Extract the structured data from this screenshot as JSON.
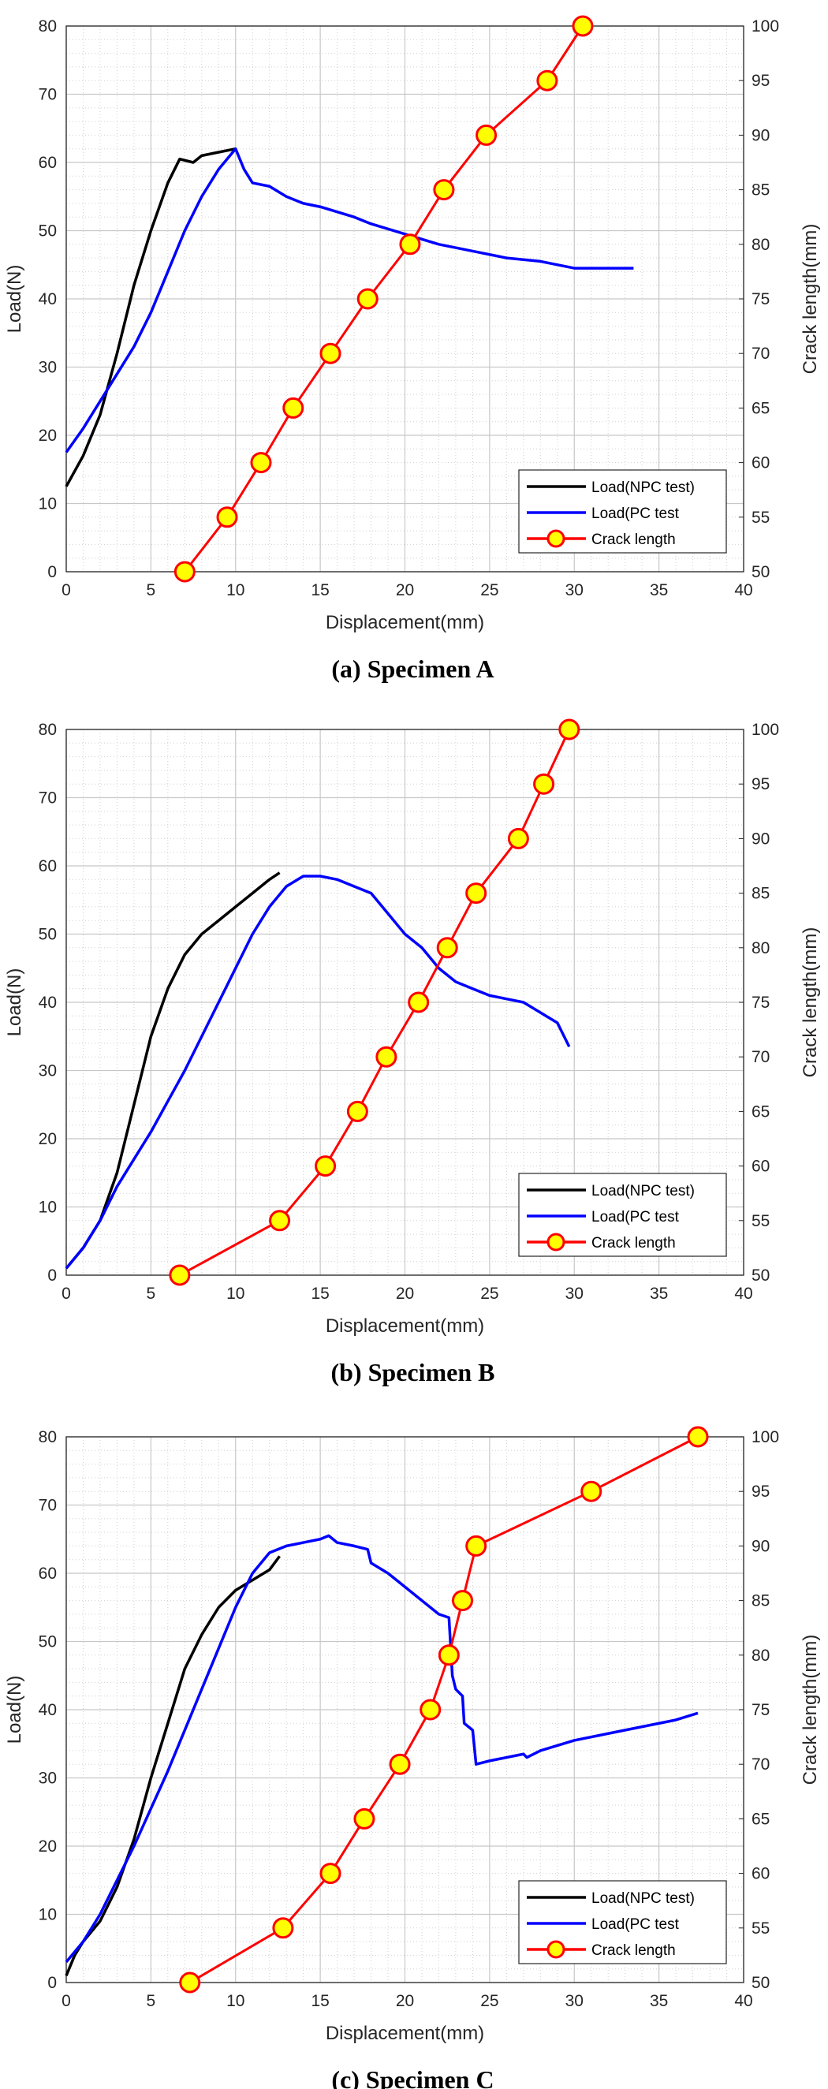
{
  "chart_data": [
    {
      "type": "line",
      "caption": "(a) Specimen A",
      "xlabel": "Displacement(mm)",
      "ylabel": "Load(N)",
      "y2label": "Crack length(mm)",
      "xlim": [
        0,
        40
      ],
      "ylim": [
        0,
        80
      ],
      "y2lim": [
        50,
        100
      ],
      "xticks": [
        0,
        5,
        10,
        15,
        20,
        25,
        30,
        35,
        40
      ],
      "yticks": [
        0,
        10,
        20,
        30,
        40,
        50,
        60,
        70,
        80
      ],
      "y2ticks": [
        50,
        55,
        60,
        65,
        70,
        75,
        80,
        85,
        90,
        95,
        100
      ],
      "grid": true,
      "minor_grid": true,
      "legend": "bottom-right",
      "series": [
        {
          "name": "Load(NPC test)",
          "axis": "left",
          "color": "#000000",
          "x": [
            0,
            1,
            2,
            3,
            4,
            5,
            6,
            6.7,
            7.5,
            8,
            9,
            10
          ],
          "y": [
            12.5,
            17,
            23,
            32,
            42,
            50,
            57,
            60.5,
            60,
            61,
            61.5,
            62
          ]
        },
        {
          "name": "Load(PC test",
          "axis": "left",
          "color": "#0000ff",
          "x": [
            0,
            1,
            2,
            3,
            4,
            5,
            6,
            7,
            8,
            9,
            10,
            10.5,
            11,
            12,
            13,
            14,
            15,
            17,
            18,
            20,
            22,
            24,
            26,
            28,
            30,
            32,
            33.5
          ],
          "y": [
            17.5,
            21,
            25,
            29,
            33,
            38,
            44,
            50,
            55,
            59,
            62,
            59,
            57,
            56.5,
            55,
            54,
            53.5,
            52,
            51,
            49.5,
            48,
            47,
            46,
            45.5,
            44.5,
            44.5,
            44.5
          ]
        },
        {
          "name": "Crack length",
          "axis": "right",
          "color": "#ff0000",
          "marker_fill": "#ffff00",
          "x": [
            7,
            9.5,
            11.5,
            13.4,
            15.6,
            17.8,
            20.3,
            22.3,
            24.8,
            28.4,
            30.5
          ],
          "y": [
            50,
            55,
            60,
            65,
            70,
            75,
            80,
            85,
            90,
            95,
            100
          ]
        }
      ]
    },
    {
      "type": "line",
      "caption": "(b) Specimen B",
      "xlabel": "Displacement(mm)",
      "ylabel": "Load(N)",
      "y2label": "Crack length(mm)",
      "xlim": [
        0,
        40
      ],
      "ylim": [
        0,
        80
      ],
      "y2lim": [
        50,
        100
      ],
      "xticks": [
        0,
        5,
        10,
        15,
        20,
        25,
        30,
        35,
        40
      ],
      "yticks": [
        0,
        10,
        20,
        30,
        40,
        50,
        60,
        70,
        80
      ],
      "y2ticks": [
        50,
        55,
        60,
        65,
        70,
        75,
        80,
        85,
        90,
        95,
        100
      ],
      "grid": true,
      "minor_grid": true,
      "legend": "bottom-right",
      "series": [
        {
          "name": "Load(NPC test)",
          "axis": "left",
          "color": "#000000",
          "x": [
            0,
            1,
            2,
            3,
            4,
            5,
            6,
            7,
            8,
            9,
            10,
            11,
            12,
            12.6
          ],
          "y": [
            1,
            4,
            8,
            15,
            25,
            35,
            42,
            47,
            50,
            52,
            54,
            56,
            58,
            59
          ]
        },
        {
          "name": "Load(PC test",
          "axis": "left",
          "color": "#0000ff",
          "x": [
            0,
            1,
            2,
            3,
            4,
            5,
            6,
            7,
            8,
            9,
            10,
            11,
            12,
            13,
            14,
            15,
            16,
            17,
            18,
            19,
            20,
            21,
            22,
            23,
            24,
            25,
            26,
            27,
            28,
            29,
            29.7
          ],
          "y": [
            1,
            4,
            8,
            13,
            17,
            21,
            25.5,
            30,
            35,
            40,
            45,
            50,
            54,
            57,
            58.5,
            58.5,
            58,
            57,
            56,
            53,
            50,
            48,
            45,
            43,
            42,
            41,
            40.5,
            40,
            38.5,
            37,
            33.5
          ]
        },
        {
          "name": "Crack length",
          "axis": "right",
          "color": "#ff0000",
          "marker_fill": "#ffff00",
          "x": [
            6.7,
            12.6,
            15.3,
            17.2,
            18.9,
            20.8,
            22.5,
            24.2,
            26.7,
            28.2,
            29.7
          ],
          "y": [
            50,
            55,
            60,
            65,
            70,
            75,
            80,
            85,
            90,
            95,
            100
          ]
        }
      ]
    },
    {
      "type": "line",
      "caption": "(c) Specimen C",
      "xlabel": "Displacement(mm)",
      "ylabel": "Load(N)",
      "y2label": "Crack length(mm)",
      "xlim": [
        0,
        40
      ],
      "ylim": [
        0,
        80
      ],
      "y2lim": [
        50,
        100
      ],
      "xticks": [
        0,
        5,
        10,
        15,
        20,
        25,
        30,
        35,
        40
      ],
      "yticks": [
        0,
        10,
        20,
        30,
        40,
        50,
        60,
        70,
        80
      ],
      "y2ticks": [
        50,
        55,
        60,
        65,
        70,
        75,
        80,
        85,
        90,
        95,
        100
      ],
      "grid": true,
      "minor_grid": true,
      "legend": "bottom-right",
      "series": [
        {
          "name": "Load(NPC test)",
          "axis": "left",
          "color": "#000000",
          "x": [
            0,
            0.5,
            1,
            2,
            3,
            4,
            5,
            6,
            7,
            8,
            9,
            10,
            11,
            12,
            12.6
          ],
          "y": [
            1,
            4,
            6,
            9,
            14,
            21,
            30,
            38,
            46,
            51,
            55,
            57.5,
            59,
            60.5,
            62.5
          ]
        },
        {
          "name": "Load(PC test",
          "axis": "left",
          "color": "#0000ff",
          "x": [
            0,
            1,
            2,
            3,
            4,
            5,
            6,
            7,
            8,
            9,
            10,
            11,
            12,
            13,
            14,
            15,
            15.5,
            16,
            17,
            17.8,
            18,
            19,
            20,
            21,
            22,
            22.6,
            22.8,
            23,
            23.4,
            23.5,
            24,
            24.2,
            25,
            26,
            27,
            27.2,
            28,
            30,
            32,
            34,
            36,
            37.3
          ],
          "y": [
            3,
            6,
            10,
            15,
            20,
            25.5,
            31,
            37,
            43,
            49,
            55,
            60,
            63,
            64,
            64.5,
            65,
            65.5,
            64.5,
            64,
            63.5,
            61.5,
            60,
            58,
            56,
            54,
            53.5,
            45,
            43,
            42,
            38,
            37,
            32,
            32.5,
            33,
            33.5,
            33,
            34,
            35.5,
            36.5,
            37.5,
            38.5,
            39.5
          ]
        },
        {
          "name": "Crack length",
          "axis": "right",
          "color": "#ff0000",
          "marker_fill": "#ffff00",
          "x": [
            7.3,
            12.8,
            15.6,
            17.6,
            19.7,
            21.5,
            22.6,
            23.4,
            24.2,
            31,
            37.3
          ],
          "y": [
            50,
            55,
            60,
            65,
            70,
            75,
            80,
            85,
            90,
            95,
            100
          ]
        }
      ]
    }
  ]
}
